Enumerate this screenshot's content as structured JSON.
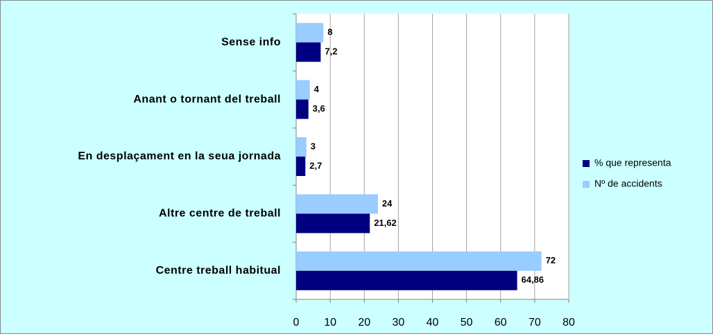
{
  "chart_data": {
    "type": "bar",
    "orientation": "horizontal",
    "categories": [
      "Sense info",
      "Anant o tornant del treball",
      "En desplaçament en la seua jornada",
      "Altre centre de treball",
      "Centre treball habitual"
    ],
    "series": [
      {
        "name": "% que representa",
        "color": "#000080",
        "values": [
          7.2,
          3.6,
          2.7,
          21.62,
          64.86
        ],
        "value_labels": [
          "7,2",
          "3,6",
          "2,7",
          "21,62",
          "64,86"
        ]
      },
      {
        "name": "Nº de accidents",
        "color": "#99ccff",
        "values": [
          8,
          4,
          3,
          24,
          72
        ]
      }
    ],
    "xlim": [
      0,
      80
    ],
    "xticks": [
      0,
      10,
      20,
      30,
      40,
      50,
      60,
      70,
      80
    ],
    "grid": true,
    "legend": "right"
  }
}
